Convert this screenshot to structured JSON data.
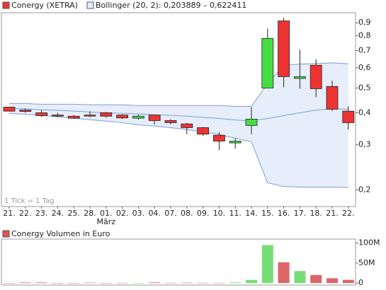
{
  "chart_data": [
    {
      "type": "candlestick",
      "legend": [
        "Conergy (XETRA)",
        "Bollinger (20, 2): 0,203889 – 0,622411"
      ],
      "note": "1 Tick = 1 Tag",
      "month_label": "März",
      "categories": [
        "21.",
        "22.",
        "23.",
        "24.",
        "25.",
        "28.",
        "01.",
        "02.",
        "03.",
        "04.",
        "07.",
        "08.",
        "09.",
        "10.",
        "11.",
        "14.",
        "15.",
        "16.",
        "17.",
        "18.",
        "21.",
        "22."
      ],
      "open": [
        0.421,
        0.41,
        0.4,
        0.392,
        0.388,
        0.392,
        0.4,
        0.392,
        0.381,
        0.392,
        0.373,
        0.362,
        0.35,
        0.327,
        0.305,
        0.357,
        0.5,
        0.915,
        0.545,
        0.614,
        0.507,
        0.406
      ],
      "high": [
        0.421,
        0.415,
        0.41,
        0.4,
        0.392,
        0.405,
        0.403,
        0.395,
        0.394,
        0.392,
        0.378,
        0.365,
        0.352,
        0.336,
        0.318,
        0.421,
        0.854,
        0.94,
        0.706,
        0.648,
        0.534,
        0.424
      ],
      "low": [
        0.406,
        0.4,
        0.385,
        0.385,
        0.378,
        0.385,
        0.383,
        0.378,
        0.376,
        0.36,
        0.36,
        0.33,
        0.325,
        0.286,
        0.29,
        0.33,
        0.5,
        0.503,
        0.497,
        0.46,
        0.406,
        0.344
      ],
      "close": [
        0.406,
        0.405,
        0.39,
        0.39,
        0.381,
        0.391,
        0.388,
        0.382,
        0.388,
        0.373,
        0.366,
        0.35,
        0.33,
        0.31,
        0.31,
        0.378,
        0.782,
        0.554,
        0.554,
        0.497,
        0.413,
        0.366
      ],
      "up_color": "#44dd44",
      "down_color": "#ee3333",
      "bollinger": {
        "color": "#7f9fcf",
        "fill": "#e6eefb",
        "upper": [
          0.435,
          0.435,
          0.432,
          0.432,
          0.432,
          0.43,
          0.43,
          0.43,
          0.427,
          0.427,
          0.427,
          0.427,
          0.427,
          0.427,
          0.424,
          0.424,
          0.52,
          0.614,
          0.62,
          0.623,
          0.627,
          0.622411
        ],
        "middle": [
          0.416,
          0.415,
          0.411,
          0.409,
          0.406,
          0.403,
          0.4,
          0.398,
          0.396,
          0.393,
          0.391,
          0.388,
          0.384,
          0.38,
          0.375,
          0.372,
          0.38,
          0.39,
          0.4,
          0.41,
          0.415,
          0.413
        ],
        "lower": [
          0.398,
          0.395,
          0.391,
          0.386,
          0.381,
          0.376,
          0.371,
          0.366,
          0.359,
          0.355,
          0.35,
          0.344,
          0.337,
          0.329,
          0.318,
          0.308,
          0.213,
          0.206,
          0.205,
          0.205,
          0.205,
          0.203889
        ]
      },
      "log_y": true,
      "ylim": [
        0.172,
        0.985
      ],
      "yticks": [
        {
          "value": 0.2,
          "label": "0,2"
        },
        {
          "value": 0.3,
          "label": "0,3"
        },
        {
          "value": 0.4,
          "label": "0,4"
        },
        {
          "value": 0.5,
          "label": "0,5"
        },
        {
          "value": 0.6,
          "label": "0,6"
        },
        {
          "value": 0.7,
          "label": "0,7"
        },
        {
          "value": 0.8,
          "label": "0,8"
        },
        {
          "value": 0.9,
          "label": "0,9"
        }
      ]
    },
    {
      "type": "bar",
      "legend": "Conergy Volumen in Euro",
      "legend_color": "#dd5555",
      "up_color": "#77dd77",
      "down_color": "#dd6666",
      "values": [
        300000,
        1500000,
        1500000,
        300000,
        300000,
        1000000,
        300000,
        500000,
        300000,
        1500000,
        500000,
        1000000,
        500000,
        500000,
        1500000,
        8000000,
        95000000,
        52000000,
        30000000,
        20000000,
        12000000,
        8000000
      ],
      "ylim": [
        -5000000,
        110000000
      ],
      "yticks": [
        0,
        {
          "value": 50000000,
          "label": "50M"
        },
        {
          "value": 100000000,
          "label": "100M"
        }
      ]
    }
  ]
}
